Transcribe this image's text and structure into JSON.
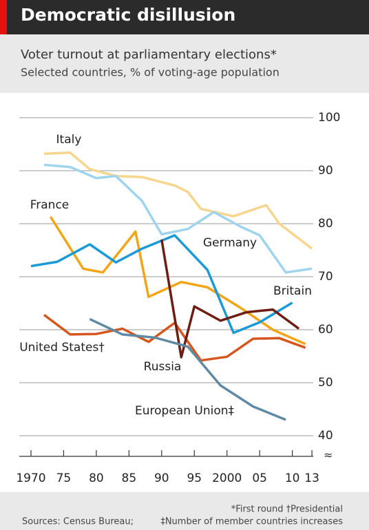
{
  "chart_data": {
    "type": "line",
    "title": "Democratic disillusion",
    "subtitle": "Voter turnout at parliamentary elections*",
    "subtitle2": "Selected countries, % of voting-age population",
    "notes": [
      "*First round    †Presidential",
      "‡Number of member countries increases"
    ],
    "source": "Sources: Census Bureau;",
    "xlim": [
      1968,
      2014
    ],
    "ylim": [
      40,
      100
    ],
    "yticks": [
      40,
      50,
      60,
      70,
      80,
      90,
      100
    ],
    "xticks": [
      1970,
      {
        "value": 1975,
        "label": "75"
      },
      {
        "value": 1980,
        "label": "80"
      },
      {
        "value": 1985,
        "label": "85"
      },
      {
        "value": 1990,
        "label": "90"
      },
      {
        "value": 1995,
        "label": "95"
      },
      2000,
      {
        "value": 2005,
        "label": "05"
      },
      {
        "value": 2010,
        "label": "10"
      },
      {
        "value": 2013,
        "label": "13"
      }
    ],
    "grid": true,
    "series": [
      {
        "name": "Italy",
        "color": "#f8d58f",
        "x": [
          1972,
          1976,
          1979,
          1983,
          1987,
          1992,
          1994,
          1996,
          2001,
          2006,
          2008,
          2013
        ],
        "values": [
          93.2,
          93.4,
          90.3,
          89,
          88.8,
          87.2,
          86,
          82.8,
          81.4,
          83.5,
          80,
          75.3
        ]
      },
      {
        "name": "Germany",
        "color": "#9fd4ef",
        "x": [
          1972,
          1976,
          1980,
          1983,
          1987,
          1990,
          1994,
          1998,
          2002,
          2005,
          2009,
          2013
        ],
        "values": [
          91.1,
          90.7,
          88.6,
          89,
          84.3,
          78,
          79,
          82.2,
          79.5,
          77.8,
          70.8,
          71.5
        ]
      },
      {
        "name": "France",
        "color": "#f2a516",
        "x": [
          1973,
          1978,
          1981,
          1986,
          1988,
          1993,
          1997,
          2002,
          2007,
          2012
        ],
        "values": [
          81.3,
          71.5,
          70.8,
          78.5,
          66.2,
          69,
          68,
          64.2,
          60,
          57.3
        ]
      },
      {
        "name": "Britain",
        "color": "#1b9ad7",
        "x": [
          1970,
          1974,
          1979,
          1983,
          1987,
          1992,
          1997,
          2001,
          2005,
          2010
        ],
        "values": [
          72,
          72.8,
          76.1,
          72.7,
          75.3,
          77.8,
          71.3,
          59.4,
          61.4,
          65.1
        ]
      },
      {
        "name": "United States†",
        "color": "#d5561e",
        "x": [
          1972,
          1976,
          1980,
          1984,
          1988,
          1992,
          1996,
          2000,
          2004,
          2008,
          2012
        ],
        "values": [
          62.8,
          59.1,
          59.2,
          60.2,
          57.7,
          61.3,
          54.2,
          54.9,
          58.3,
          58.4,
          56.6
        ]
      },
      {
        "name": "Russia",
        "color": "#6e1d12",
        "x": [
          1990,
          1993,
          1995,
          1999,
          2003,
          2007,
          2011
        ],
        "values": [
          77,
          54.8,
          64.4,
          61.7,
          63.3,
          63.8,
          60.2
        ]
      },
      {
        "name": "European Union‡",
        "color": "#5f8aa3",
        "x": [
          1979,
          1984,
          1989,
          1994,
          1999,
          2004,
          2009
        ],
        "values": [
          62,
          59.1,
          58.5,
          56.8,
          49.5,
          45.5,
          43
        ]
      }
    ]
  }
}
